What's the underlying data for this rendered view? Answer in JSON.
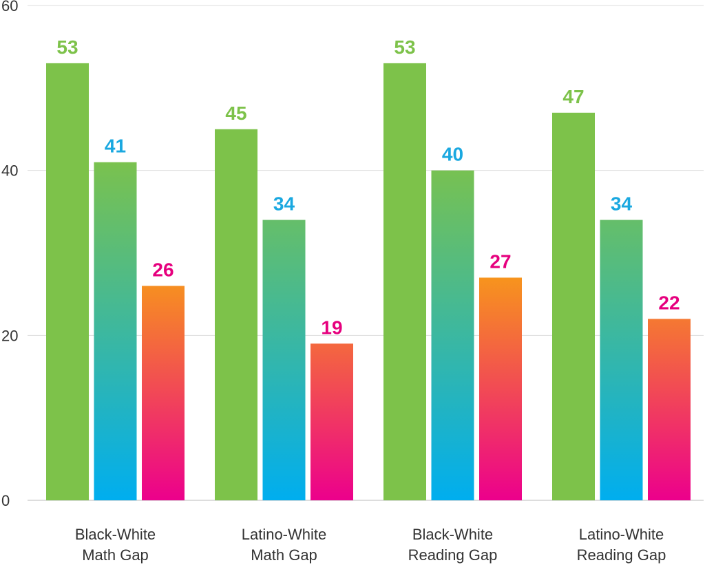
{
  "chart_data": {
    "type": "bar",
    "categories": [
      [
        "Black-White",
        "Math Gap"
      ],
      [
        "Latino-White",
        "Math Gap"
      ],
      [
        "Black-White",
        "Reading Gap"
      ],
      [
        "Latino-White",
        "Reading Gap"
      ]
    ],
    "series": [
      {
        "values": [
          53,
          45,
          53,
          47
        ],
        "label_color": "#7dc24a",
        "gradient": [
          "#7dc24a",
          "#7dc24a"
        ]
      },
      {
        "values": [
          41,
          34,
          40,
          34
        ],
        "label_color": "#1aa8e0",
        "gradient": [
          "#7dc24a",
          "#00aeef"
        ]
      },
      {
        "values": [
          26,
          19,
          27,
          22
        ],
        "label_color": "#e6007e",
        "gradient": [
          "#f7941d",
          "#ec008c"
        ]
      }
    ],
    "ylim": [
      0,
      60
    ],
    "yticks": [
      0,
      20,
      40,
      60
    ],
    "grid": true,
    "legend": "none"
  }
}
